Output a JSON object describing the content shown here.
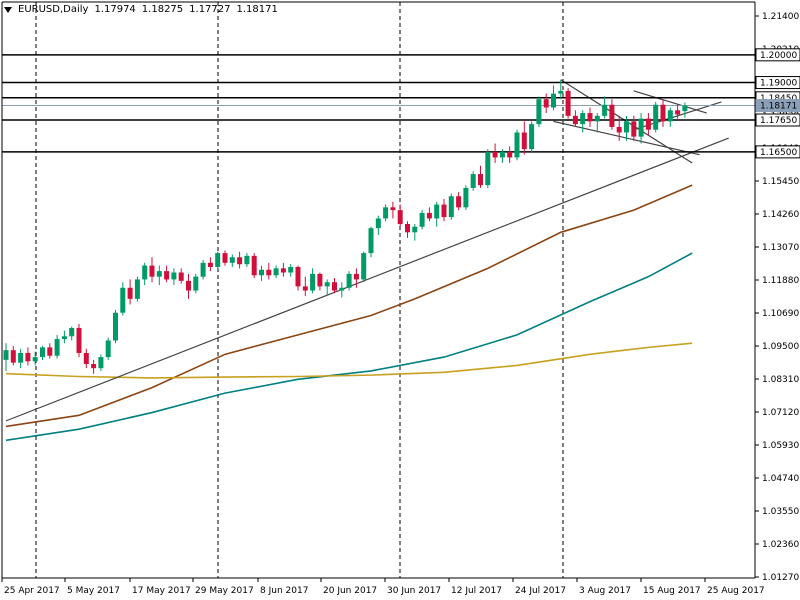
{
  "header": {
    "symbol": "EURUSD,Daily",
    "open": "1.17974",
    "high": "1.18275",
    "low": "1.17727",
    "close": "1.18171"
  },
  "chart_data": {
    "type": "candlestick",
    "grid": "vertical dashed lines",
    "y_ticks": [
      "1.21400",
      "1.20210",
      "1.19020",
      "1.17830",
      "1.16640",
      "1.15450",
      "1.14260",
      "1.13070",
      "1.11880",
      "1.10690",
      "1.09500",
      "1.08310",
      "1.07120",
      "1.05930",
      "1.04740",
      "1.03550",
      "1.02360",
      "1.01270"
    ],
    "x_ticks": [
      "25 Apr 2017",
      "5 May 2017",
      "17 May 2017",
      "29 May 2017",
      "8 Jun 2017",
      "20 Jun 2017",
      "30 Jun 2017",
      "12 Jul 2017",
      "24 Jul 2017",
      "3 Aug 2017",
      "15 Aug 2017",
      "25 Aug 2017"
    ],
    "levels": [
      {
        "label": "1.20000",
        "value": 1.2,
        "color": "#000000"
      },
      {
        "label": "1.19000",
        "value": 1.19,
        "color": "#000000"
      },
      {
        "label": "1.18450",
        "value": 1.1845,
        "color": "#000000"
      },
      {
        "label": "1.18171",
        "value": 1.18171,
        "color": "#8aa0b8"
      },
      {
        "label": "1.17650",
        "value": 1.1765,
        "color": "#000000"
      },
      {
        "label": "1.16500",
        "value": 1.165,
        "color": "#000000"
      }
    ],
    "candles": [
      {
        "o": 1.09,
        "h": 1.096,
        "l": 1.086,
        "c": 1.0935
      },
      {
        "o": 1.0935,
        "h": 1.095,
        "l": 1.088,
        "c": 1.089
      },
      {
        "o": 1.089,
        "h": 1.094,
        "l": 1.087,
        "c": 1.0925
      },
      {
        "o": 1.0925,
        "h": 1.0945,
        "l": 1.088,
        "c": 1.0895
      },
      {
        "o": 1.0895,
        "h": 1.093,
        "l": 1.088,
        "c": 1.091
      },
      {
        "o": 1.091,
        "h": 1.095,
        "l": 1.09,
        "c": 1.0945
      },
      {
        "o": 1.0945,
        "h": 1.096,
        "l": 1.0905,
        "c": 1.0915
      },
      {
        "o": 1.0915,
        "h": 1.099,
        "l": 1.0905,
        "c": 1.0975
      },
      {
        "o": 1.0975,
        "h": 1.1005,
        "l": 1.096,
        "c": 1.0985
      },
      {
        "o": 1.0985,
        "h": 1.102,
        "l": 1.097,
        "c": 1.1015
      },
      {
        "o": 1.1015,
        "h": 1.103,
        "l": 1.091,
        "c": 1.0925
      },
      {
        "o": 1.0925,
        "h": 1.094,
        "l": 1.087,
        "c": 1.0885
      },
      {
        "o": 1.0885,
        "h": 1.09,
        "l": 1.085,
        "c": 1.087
      },
      {
        "o": 1.087,
        "h": 1.092,
        "l": 1.086,
        "c": 1.091
      },
      {
        "o": 1.091,
        "h": 1.098,
        "l": 1.09,
        "c": 1.097
      },
      {
        "o": 1.097,
        "h": 1.108,
        "l": 1.096,
        "c": 1.107
      },
      {
        "o": 1.107,
        "h": 1.118,
        "l": 1.106,
        "c": 1.116
      },
      {
        "o": 1.116,
        "h": 1.119,
        "l": 1.11,
        "c": 1.112
      },
      {
        "o": 1.112,
        "h": 1.12,
        "l": 1.111,
        "c": 1.119
      },
      {
        "o": 1.119,
        "h": 1.125,
        "l": 1.117,
        "c": 1.124
      },
      {
        "o": 1.124,
        "h": 1.127,
        "l": 1.118,
        "c": 1.12
      },
      {
        "o": 1.12,
        "h": 1.124,
        "l": 1.117,
        "c": 1.122
      },
      {
        "o": 1.122,
        "h": 1.124,
        "l": 1.118,
        "c": 1.119
      },
      {
        "o": 1.119,
        "h": 1.123,
        "l": 1.117,
        "c": 1.1215
      },
      {
        "o": 1.1215,
        "h": 1.123,
        "l": 1.1175,
        "c": 1.1185
      },
      {
        "o": 1.1185,
        "h": 1.121,
        "l": 1.112,
        "c": 1.115
      },
      {
        "o": 1.115,
        "h": 1.121,
        "l": 1.114,
        "c": 1.12
      },
      {
        "o": 1.12,
        "h": 1.126,
        "l": 1.119,
        "c": 1.125
      },
      {
        "o": 1.125,
        "h": 1.127,
        "l": 1.122,
        "c": 1.1235
      },
      {
        "o": 1.1235,
        "h": 1.129,
        "l": 1.1225,
        "c": 1.1285
      },
      {
        "o": 1.1285,
        "h": 1.1295,
        "l": 1.124,
        "c": 1.125
      },
      {
        "o": 1.125,
        "h": 1.128,
        "l": 1.1235,
        "c": 1.127
      },
      {
        "o": 1.127,
        "h": 1.129,
        "l": 1.123,
        "c": 1.1245
      },
      {
        "o": 1.1245,
        "h": 1.1285,
        "l": 1.1235,
        "c": 1.1275
      },
      {
        "o": 1.1275,
        "h": 1.1285,
        "l": 1.1195,
        "c": 1.1205
      },
      {
        "o": 1.1205,
        "h": 1.124,
        "l": 1.1185,
        "c": 1.1225
      },
      {
        "o": 1.1225,
        "h": 1.125,
        "l": 1.119,
        "c": 1.1205
      },
      {
        "o": 1.1205,
        "h": 1.124,
        "l": 1.1195,
        "c": 1.123
      },
      {
        "o": 1.123,
        "h": 1.125,
        "l": 1.12,
        "c": 1.1215
      },
      {
        "o": 1.1215,
        "h": 1.1245,
        "l": 1.12,
        "c": 1.1235
      },
      {
        "o": 1.1235,
        "h": 1.124,
        "l": 1.115,
        "c": 1.1165
      },
      {
        "o": 1.1165,
        "h": 1.12,
        "l": 1.113,
        "c": 1.115
      },
      {
        "o": 1.115,
        "h": 1.123,
        "l": 1.114,
        "c": 1.121
      },
      {
        "o": 1.121,
        "h": 1.1215,
        "l": 1.115,
        "c": 1.1165
      },
      {
        "o": 1.1165,
        "h": 1.119,
        "l": 1.1135,
        "c": 1.118
      },
      {
        "o": 1.118,
        "h": 1.1195,
        "l": 1.114,
        "c": 1.115
      },
      {
        "o": 1.115,
        "h": 1.118,
        "l": 1.1125,
        "c": 1.116
      },
      {
        "o": 1.116,
        "h": 1.122,
        "l": 1.115,
        "c": 1.121
      },
      {
        "o": 1.121,
        "h": 1.123,
        "l": 1.116,
        "c": 1.119
      },
      {
        "o": 1.119,
        "h": 1.129,
        "l": 1.118,
        "c": 1.1285
      },
      {
        "o": 1.1285,
        "h": 1.138,
        "l": 1.127,
        "c": 1.1375
      },
      {
        "o": 1.1375,
        "h": 1.142,
        "l": 1.135,
        "c": 1.141
      },
      {
        "o": 1.141,
        "h": 1.146,
        "l": 1.14,
        "c": 1.145
      },
      {
        "o": 1.145,
        "h": 1.147,
        "l": 1.141,
        "c": 1.144
      },
      {
        "o": 1.144,
        "h": 1.146,
        "l": 1.138,
        "c": 1.139
      },
      {
        "o": 1.139,
        "h": 1.14,
        "l": 1.134,
        "c": 1.136
      },
      {
        "o": 1.136,
        "h": 1.139,
        "l": 1.133,
        "c": 1.138
      },
      {
        "o": 1.138,
        "h": 1.144,
        "l": 1.137,
        "c": 1.143
      },
      {
        "o": 1.143,
        "h": 1.145,
        "l": 1.14,
        "c": 1.141
      },
      {
        "o": 1.141,
        "h": 1.147,
        "l": 1.138,
        "c": 1.146
      },
      {
        "o": 1.146,
        "h": 1.148,
        "l": 1.14,
        "c": 1.1415
      },
      {
        "o": 1.1415,
        "h": 1.15,
        "l": 1.1405,
        "c": 1.149
      },
      {
        "o": 1.149,
        "h": 1.1505,
        "l": 1.144,
        "c": 1.145
      },
      {
        "o": 1.145,
        "h": 1.153,
        "l": 1.144,
        "c": 1.152
      },
      {
        "o": 1.152,
        "h": 1.158,
        "l": 1.151,
        "c": 1.157
      },
      {
        "o": 1.157,
        "h": 1.16,
        "l": 1.152,
        "c": 1.153
      },
      {
        "o": 1.153,
        "h": 1.166,
        "l": 1.152,
        "c": 1.165
      },
      {
        "o": 1.165,
        "h": 1.168,
        "l": 1.161,
        "c": 1.163
      },
      {
        "o": 1.163,
        "h": 1.166,
        "l": 1.161,
        "c": 1.165
      },
      {
        "o": 1.165,
        "h": 1.167,
        "l": 1.161,
        "c": 1.163
      },
      {
        "o": 1.163,
        "h": 1.173,
        "l": 1.162,
        "c": 1.172
      },
      {
        "o": 1.172,
        "h": 1.176,
        "l": 1.164,
        "c": 1.166
      },
      {
        "o": 1.166,
        "h": 1.176,
        "l": 1.165,
        "c": 1.175
      },
      {
        "o": 1.175,
        "h": 1.185,
        "l": 1.174,
        "c": 1.184
      },
      {
        "o": 1.184,
        "h": 1.186,
        "l": 1.179,
        "c": 1.181
      },
      {
        "o": 1.181,
        "h": 1.189,
        "l": 1.18,
        "c": 1.186
      },
      {
        "o": 1.186,
        "h": 1.191,
        "l": 1.184,
        "c": 1.187
      },
      {
        "o": 1.187,
        "h": 1.188,
        "l": 1.177,
        "c": 1.178
      },
      {
        "o": 1.178,
        "h": 1.18,
        "l": 1.174,
        "c": 1.175
      },
      {
        "o": 1.175,
        "h": 1.18,
        "l": 1.172,
        "c": 1.179
      },
      {
        "o": 1.179,
        "h": 1.181,
        "l": 1.174,
        "c": 1.176
      },
      {
        "o": 1.176,
        "h": 1.179,
        "l": 1.172,
        "c": 1.178
      },
      {
        "o": 1.178,
        "h": 1.185,
        "l": 1.177,
        "c": 1.182
      },
      {
        "o": 1.182,
        "h": 1.184,
        "l": 1.173,
        "c": 1.174
      },
      {
        "o": 1.174,
        "h": 1.178,
        "l": 1.169,
        "c": 1.172
      },
      {
        "o": 1.172,
        "h": 1.178,
        "l": 1.169,
        "c": 1.176
      },
      {
        "o": 1.176,
        "h": 1.178,
        "l": 1.169,
        "c": 1.1705
      },
      {
        "o": 1.1705,
        "h": 1.179,
        "l": 1.168,
        "c": 1.177
      },
      {
        "o": 1.177,
        "h": 1.179,
        "l": 1.171,
        "c": 1.173
      },
      {
        "o": 1.173,
        "h": 1.183,
        "l": 1.172,
        "c": 1.182
      },
      {
        "o": 1.182,
        "h": 1.184,
        "l": 1.174,
        "c": 1.176
      },
      {
        "o": 1.176,
        "h": 1.181,
        "l": 1.174,
        "c": 1.18
      },
      {
        "o": 1.18,
        "h": 1.182,
        "l": 1.177,
        "c": 1.1785
      },
      {
        "o": 1.1797,
        "h": 1.1828,
        "l": 1.1773,
        "c": 1.1817
      }
    ],
    "moving_averages": [
      {
        "color": "#8b4513",
        "points": [
          [
            0,
            1.066
          ],
          [
            10,
            1.07
          ],
          [
            20,
            1.08
          ],
          [
            30,
            1.092
          ],
          [
            40,
            1.099
          ],
          [
            50,
            1.106
          ],
          [
            56,
            1.112
          ],
          [
            66,
            1.123
          ],
          [
            76,
            1.136
          ],
          [
            86,
            1.144
          ],
          [
            94,
            1.153
          ]
        ]
      },
      {
        "color": "#008080",
        "points": [
          [
            0,
            1.061
          ],
          [
            10,
            1.065
          ],
          [
            20,
            1.071
          ],
          [
            30,
            1.078
          ],
          [
            40,
            1.083
          ],
          [
            50,
            1.086
          ],
          [
            60,
            1.091
          ],
          [
            70,
            1.099
          ],
          [
            80,
            1.111
          ],
          [
            88,
            1.12
          ],
          [
            94,
            1.1285
          ]
        ]
      },
      {
        "color": "#c8a020",
        "points": [
          [
            0,
            1.085
          ],
          [
            10,
            1.084
          ],
          [
            20,
            1.0835
          ],
          [
            30,
            1.0838
          ],
          [
            40,
            1.084
          ],
          [
            50,
            1.0845
          ],
          [
            60,
            1.0855
          ],
          [
            70,
            1.088
          ],
          [
            80,
            1.092
          ],
          [
            88,
            1.0945
          ],
          [
            94,
            1.096
          ]
        ]
      }
    ],
    "trendlines": [
      {
        "color": "#444444",
        "points": [
          [
            0,
            1.068
          ],
          [
            99,
            1.17
          ]
        ]
      },
      {
        "color": "#444444",
        "points": [
          [
            76,
            1.191
          ],
          [
            94,
            1.161
          ]
        ]
      },
      {
        "color": "#444444",
        "points": [
          [
            75,
            1.176
          ],
          [
            95,
            1.164
          ]
        ]
      },
      {
        "color": "#444444",
        "points": [
          [
            86,
            1.187
          ],
          [
            96,
            1.179
          ]
        ]
      },
      {
        "color": "#444444",
        "points": [
          [
            86,
            1.173
          ],
          [
            98,
            1.183
          ]
        ]
      }
    ]
  }
}
